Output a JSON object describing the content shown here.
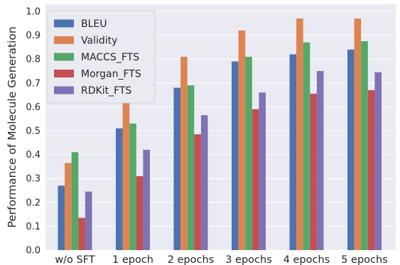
{
  "chart_data": {
    "type": "bar",
    "title": "",
    "xlabel": "",
    "ylabel": "Performance of Molecule Generation",
    "ylim": [
      0,
      1.0
    ],
    "yticks": [
      "0.0",
      "0.1",
      "0.2",
      "0.3",
      "0.4",
      "0.5",
      "0.6",
      "0.7",
      "0.8",
      "0.9",
      "1.0"
    ],
    "grid": true,
    "legend_position": "top-left",
    "categories": [
      "w/o SFT",
      "1 epoch",
      "2 epochs",
      "3 epochs",
      "4 epochs",
      "5 epochs"
    ],
    "series": [
      {
        "name": "BLEU",
        "color": "#4c72b0",
        "values": [
          0.27,
          0.51,
          0.68,
          0.79,
          0.82,
          0.84
        ]
      },
      {
        "name": "Validity",
        "color": "#dd8452",
        "values": [
          0.365,
          0.63,
          0.81,
          0.92,
          0.97,
          0.97
        ]
      },
      {
        "name": "MACCS_FTS",
        "color": "#55a868",
        "values": [
          0.41,
          0.53,
          0.69,
          0.81,
          0.87,
          0.875
        ]
      },
      {
        "name": "Morgan_FTS",
        "color": "#c44e52",
        "values": [
          0.135,
          0.31,
          0.485,
          0.59,
          0.655,
          0.67
        ]
      },
      {
        "name": "RDKit_FTS",
        "color": "#8172b3",
        "values": [
          0.245,
          0.42,
          0.565,
          0.66,
          0.75,
          0.745
        ]
      }
    ]
  }
}
